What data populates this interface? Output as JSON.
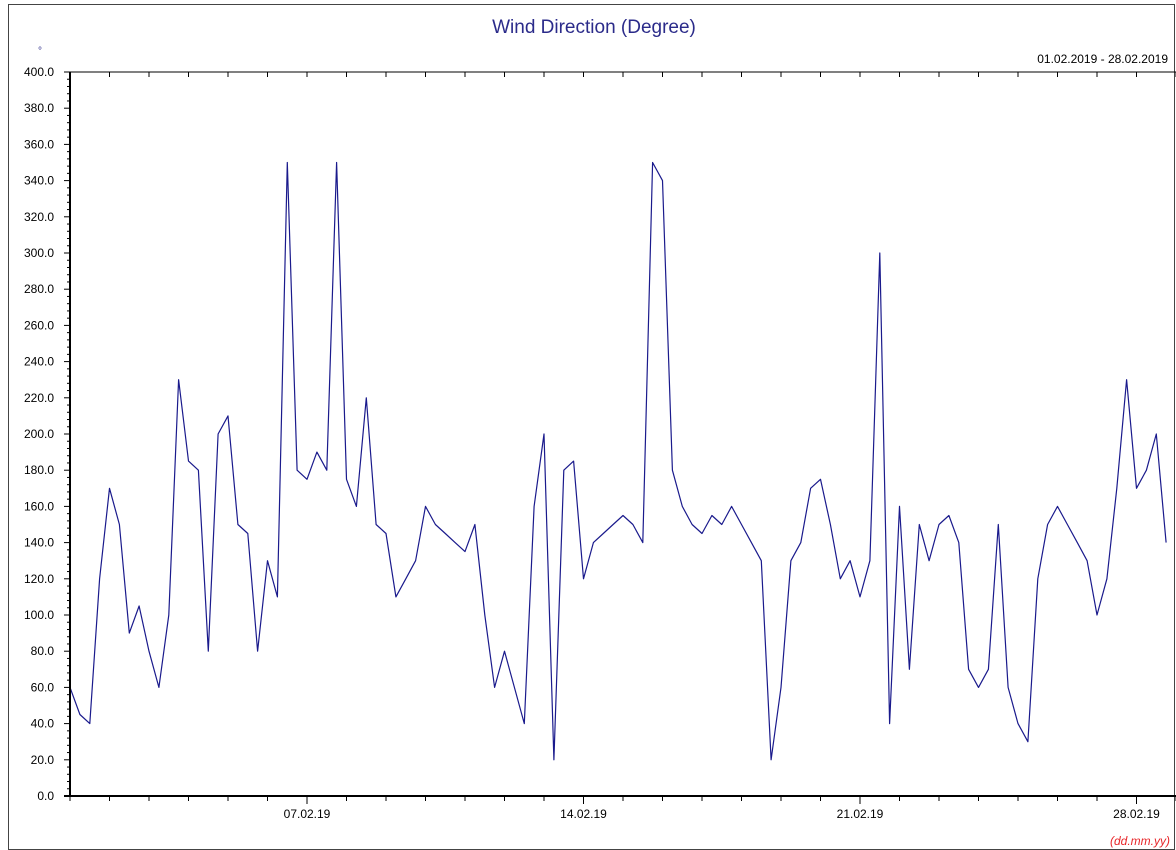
{
  "chart_data": {
    "type": "line",
    "title": "Wind Direction (Degree)",
    "unit_symbol": "°",
    "date_range": "01.02.2019 - 28.02.2019",
    "x_format_label": "(dd.mm.yy)",
    "ylim": [
      0,
      400
    ],
    "yticks": [
      "0.0",
      "20.0",
      "40.0",
      "60.0",
      "80.0",
      "100.0",
      "120.0",
      "140.0",
      "160.0",
      "180.0",
      "200.0",
      "220.0",
      "240.0",
      "260.0",
      "280.0",
      "300.0",
      "320.0",
      "340.0",
      "360.0",
      "380.0",
      "400.0"
    ],
    "xlim": [
      "01.02.2019",
      "28.02.2019"
    ],
    "xtick_labels": [
      {
        "date": "07.02.2019",
        "label": "07.02.19"
      },
      {
        "date": "14.02.2019",
        "label": "14.02.19"
      },
      {
        "date": "21.02.2019",
        "label": "21.02.19"
      },
      {
        "date": "28.02.2019",
        "label": "28.02.19"
      }
    ],
    "grid": false,
    "series_color": "#1a1a8c",
    "series": [
      {
        "values_time_series": [
          [
            "01.02.2019 00:00",
            60
          ],
          [
            "01.02.2019 06:00",
            45
          ],
          [
            "01.02.2019 12:00",
            40
          ],
          [
            "01.02.2019 18:00",
            120
          ],
          [
            "02.02.2019 00:00",
            170
          ],
          [
            "02.02.2019 06:00",
            150
          ],
          [
            "02.02.2019 12:00",
            90
          ],
          [
            "02.02.2019 18:00",
            105
          ],
          [
            "03.02.2019 00:00",
            80
          ],
          [
            "03.02.2019 06:00",
            60
          ],
          [
            "03.02.2019 12:00",
            100
          ],
          [
            "03.02.2019 18:00",
            230
          ],
          [
            "04.02.2019 00:00",
            185
          ],
          [
            "04.02.2019 06:00",
            180
          ],
          [
            "04.02.2019 12:00",
            80
          ],
          [
            "04.02.2019 18:00",
            200
          ],
          [
            "05.02.2019 00:00",
            210
          ],
          [
            "05.02.2019 06:00",
            150
          ],
          [
            "05.02.2019 12:00",
            145
          ],
          [
            "05.02.2019 18:00",
            80
          ],
          [
            "06.02.2019 00:00",
            130
          ],
          [
            "06.02.2019 06:00",
            110
          ],
          [
            "06.02.2019 12:00",
            350
          ],
          [
            "06.02.2019 18:00",
            180
          ],
          [
            "07.02.2019 00:00",
            175
          ],
          [
            "07.02.2019 06:00",
            190
          ],
          [
            "07.02.2019 12:00",
            180
          ],
          [
            "07.02.2019 18:00",
            350
          ],
          [
            "08.02.2019 00:00",
            175
          ],
          [
            "08.02.2019 06:00",
            160
          ],
          [
            "08.02.2019 12:00",
            220
          ],
          [
            "08.02.2019 18:00",
            150
          ],
          [
            "09.02.2019 00:00",
            145
          ],
          [
            "09.02.2019 06:00",
            110
          ],
          [
            "09.02.2019 12:00",
            120
          ],
          [
            "09.02.2019 18:00",
            130
          ],
          [
            "10.02.2019 00:00",
            160
          ],
          [
            "10.02.2019 06:00",
            150
          ],
          [
            "10.02.2019 12:00",
            145
          ],
          [
            "10.02.2019 18:00",
            140
          ],
          [
            "11.02.2019 00:00",
            135
          ],
          [
            "11.02.2019 06:00",
            150
          ],
          [
            "11.02.2019 12:00",
            100
          ],
          [
            "11.02.2019 18:00",
            60
          ],
          [
            "12.02.2019 00:00",
            80
          ],
          [
            "12.02.2019 06:00",
            60
          ],
          [
            "12.02.2019 12:00",
            40
          ],
          [
            "12.02.2019 18:00",
            160
          ],
          [
            "13.02.2019 00:00",
            200
          ],
          [
            "13.02.2019 06:00",
            20
          ],
          [
            "13.02.2019 12:00",
            180
          ],
          [
            "13.02.2019 18:00",
            185
          ],
          [
            "14.02.2019 00:00",
            120
          ],
          [
            "14.02.2019 06:00",
            140
          ],
          [
            "14.02.2019 12:00",
            145
          ],
          [
            "14.02.2019 18:00",
            150
          ],
          [
            "15.02.2019 00:00",
            155
          ],
          [
            "15.02.2019 06:00",
            150
          ],
          [
            "15.02.2019 12:00",
            140
          ],
          [
            "15.02.2019 18:00",
            350
          ],
          [
            "16.02.2019 00:00",
            340
          ],
          [
            "16.02.2019 06:00",
            180
          ],
          [
            "16.02.2019 12:00",
            160
          ],
          [
            "16.02.2019 18:00",
            150
          ],
          [
            "17.02.2019 00:00",
            145
          ],
          [
            "17.02.2019 06:00",
            155
          ],
          [
            "17.02.2019 12:00",
            150
          ],
          [
            "17.02.2019 18:00",
            160
          ],
          [
            "18.02.2019 00:00",
            150
          ],
          [
            "18.02.2019 06:00",
            140
          ],
          [
            "18.02.2019 12:00",
            130
          ],
          [
            "18.02.2019 18:00",
            20
          ],
          [
            "19.02.2019 00:00",
            60
          ],
          [
            "19.02.2019 06:00",
            130
          ],
          [
            "19.02.2019 12:00",
            140
          ],
          [
            "19.02.2019 18:00",
            170
          ],
          [
            "20.02.2019 00:00",
            175
          ],
          [
            "20.02.2019 06:00",
            150
          ],
          [
            "20.02.2019 12:00",
            120
          ],
          [
            "20.02.2019 18:00",
            130
          ],
          [
            "21.02.2019 00:00",
            110
          ],
          [
            "21.02.2019 06:00",
            130
          ],
          [
            "21.02.2019 12:00",
            300
          ],
          [
            "21.02.2019 18:00",
            40
          ],
          [
            "22.02.2019 00:00",
            160
          ],
          [
            "22.02.2019 06:00",
            70
          ],
          [
            "22.02.2019 12:00",
            150
          ],
          [
            "22.02.2019 18:00",
            130
          ],
          [
            "23.02.2019 00:00",
            150
          ],
          [
            "23.02.2019 06:00",
            155
          ],
          [
            "23.02.2019 12:00",
            140
          ],
          [
            "23.02.2019 18:00",
            70
          ],
          [
            "24.02.2019 00:00",
            60
          ],
          [
            "24.02.2019 06:00",
            70
          ],
          [
            "24.02.2019 12:00",
            150
          ],
          [
            "24.02.2019 18:00",
            60
          ],
          [
            "25.02.2019 00:00",
            40
          ],
          [
            "25.02.2019 06:00",
            30
          ],
          [
            "25.02.2019 12:00",
            120
          ],
          [
            "25.02.2019 18:00",
            150
          ],
          [
            "26.02.2019 00:00",
            160
          ],
          [
            "26.02.2019 06:00",
            150
          ],
          [
            "26.02.2019 12:00",
            140
          ],
          [
            "26.02.2019 18:00",
            130
          ],
          [
            "27.02.2019 00:00",
            100
          ],
          [
            "27.02.2019 06:00",
            120
          ],
          [
            "27.02.2019 12:00",
            170
          ],
          [
            "27.02.2019 18:00",
            230
          ],
          [
            "28.02.2019 00:00",
            170
          ],
          [
            "28.02.2019 06:00",
            180
          ],
          [
            "28.02.2019 12:00",
            200
          ],
          [
            "28.02.2019 18:00",
            140
          ]
        ]
      }
    ]
  }
}
